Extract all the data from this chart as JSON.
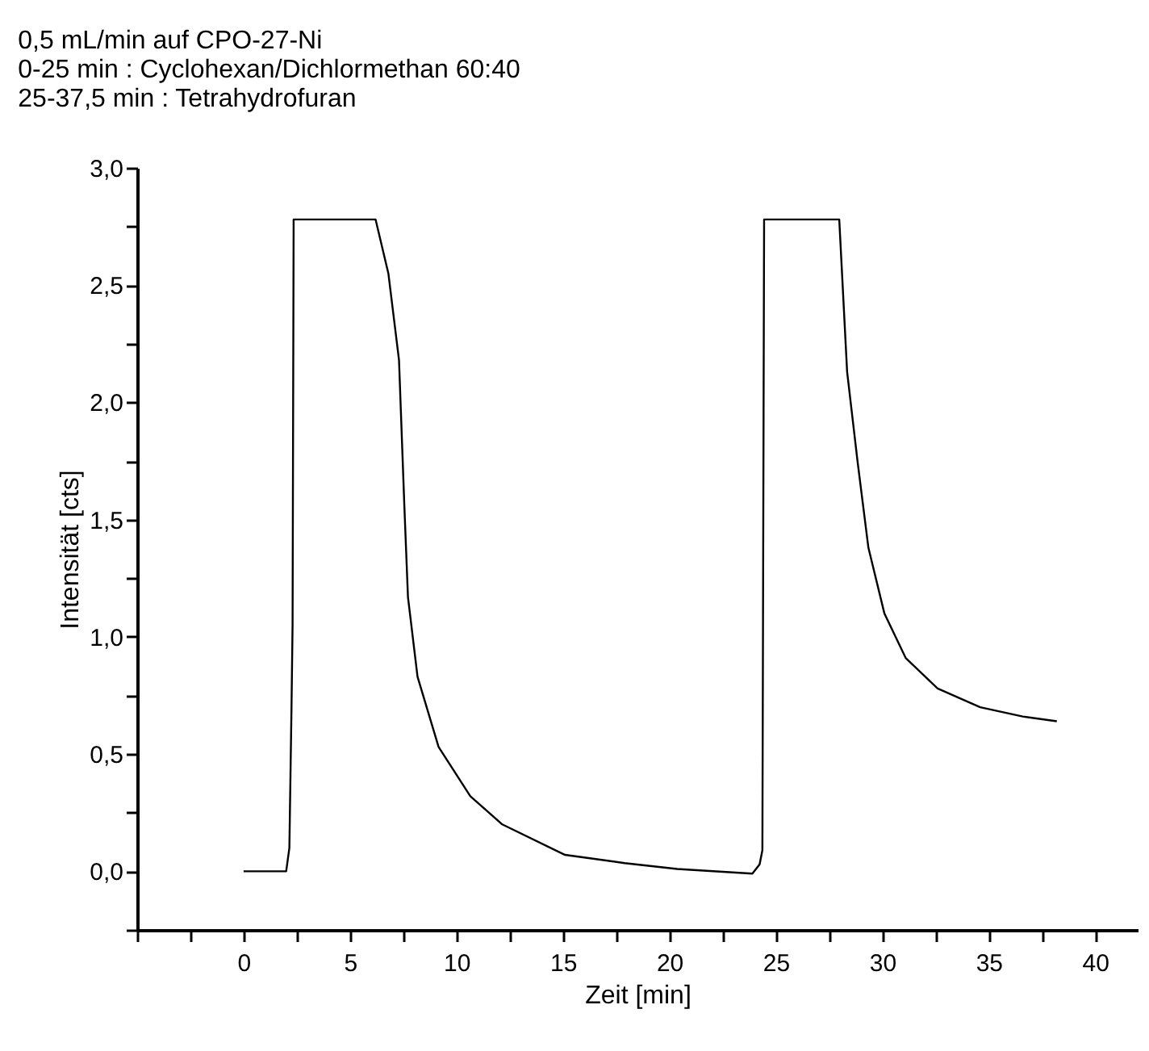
{
  "chart_data": {
    "type": "line",
    "title": "0,5 mL/min auf CPO-27-Ni",
    "annotations": [
      "0-25 min      :      Cyclohexan/Dichlormethan 60:40",
      "25-37,5 min :      Tetrahydrofuran"
    ],
    "xlabel": "Zeit [min]",
    "ylabel": "Intensität [cts]",
    "series": [
      {
        "color": "#000000",
        "x": [
          0,
          2.0,
          2.15,
          2.25,
          2.3,
          2.35,
          6.2,
          6.8,
          7.3,
          7.55,
          7.72,
          8.17,
          9.16,
          10.65,
          12.15,
          15.1,
          17.9,
          20.37,
          23.9,
          24.24,
          24.37,
          24.45,
          27.98,
          28.35,
          28.85,
          29.35,
          30.1,
          31.1,
          32.6,
          34.6,
          36.6,
          38.2
        ],
        "values": [
          0,
          0,
          0.1,
          0.7,
          1.05,
          2.78,
          2.78,
          2.55,
          2.18,
          1.56,
          1.17,
          0.83,
          0.53,
          0.32,
          0.2,
          0.07,
          0.035,
          0.01,
          -0.01,
          0.03,
          0.09,
          2.78,
          2.78,
          2.13,
          1.74,
          1.38,
          1.1,
          0.91,
          0.78,
          0.7,
          0.66,
          0.64
        ]
      }
    ],
    "xlim": [
      -5,
      42
    ],
    "xticks": [
      {
        "value": -5,
        "label": null
      },
      {
        "value": -2.5,
        "label": null
      },
      0,
      {
        "value": 2.5,
        "label": null
      },
      5,
      {
        "value": 7.5,
        "label": null
      },
      10,
      {
        "value": 12.5,
        "label": null
      },
      15,
      {
        "value": 17.5,
        "label": null
      },
      20,
      {
        "value": 22.5,
        "label": null
      },
      25,
      {
        "value": 27.5,
        "label": null
      },
      30,
      {
        "value": 32.5,
        "label": null
      },
      35,
      {
        "value": 37.5,
        "label": null
      },
      40
    ],
    "ylim": [
      -0.25,
      3.0
    ],
    "yticks": [
      {
        "value": -0.25,
        "label": null
      },
      {
        "value": 0,
        "label": "0,0"
      },
      {
        "value": 0.25,
        "label": null
      },
      {
        "value": 0.5,
        "label": "0,5"
      },
      {
        "value": 0.75,
        "label": null
      },
      {
        "value": 1,
        "label": "1,0"
      },
      {
        "value": 1.25,
        "label": null
      },
      {
        "value": 1.5,
        "label": "1,5"
      },
      {
        "value": 1.75,
        "label": null
      },
      {
        "value": 2,
        "label": "2,0"
      },
      {
        "value": 2.25,
        "label": null
      },
      {
        "value": 2.5,
        "label": "2,5"
      },
      {
        "value": 2.75,
        "label": null
      },
      {
        "value": 3,
        "label": "3,0"
      }
    ],
    "grid": false,
    "marker": "none",
    "line_style": "solid"
  }
}
